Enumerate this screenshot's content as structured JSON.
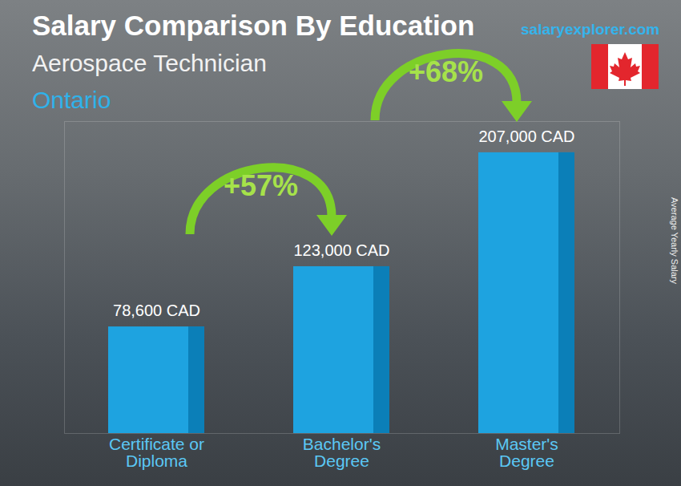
{
  "chart_data": {
    "type": "bar",
    "title": "Salary Comparison By Education",
    "subtitle": "Aerospace Technician",
    "location": "Ontario",
    "source": "salaryexplorer.com",
    "ylabel": "Average Yearly Salary",
    "categories": [
      "Certificate or Diploma",
      "Bachelor's Degree",
      "Master's Degree"
    ],
    "values": [
      78600,
      123000,
      207000
    ],
    "value_labels": [
      "78,600 CAD",
      "123,000 CAD",
      "207,000 CAD"
    ],
    "data_labels": true,
    "color": "#1ea3e0",
    "ylim": [
      0,
      230000
    ],
    "tick_labels": "x",
    "annotations": [
      {
        "text": "+57%",
        "from": "Certificate or Diploma",
        "to": "Bachelor's Degree"
      },
      {
        "text": "+68%",
        "from": "Bachelor's Degree",
        "to": "Master's Degree"
      }
    ]
  }
}
